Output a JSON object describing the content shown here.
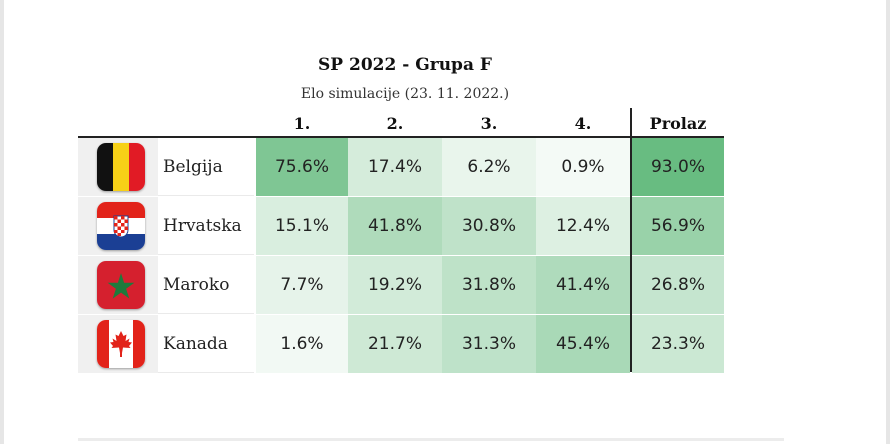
{
  "chart_data": {
    "type": "table",
    "title": "SP 2022 - Grupa F",
    "subtitle": "Elo simulacije (23. 11. 2022.)",
    "columns": [
      "1.",
      "2.",
      "3.",
      "4.",
      "Prolaz"
    ],
    "rows": [
      {
        "team": "Belgija",
        "flag": "belgium-flag",
        "values": [
          "75.6%",
          "17.4%",
          "6.2%",
          "0.9%",
          "93.0%"
        ],
        "numbers": [
          75.6,
          17.4,
          6.2,
          0.9,
          93.0
        ]
      },
      {
        "team": "Hrvatska",
        "flag": "croatia-flag",
        "values": [
          "15.1%",
          "41.8%",
          "30.8%",
          "12.4%",
          "56.9%"
        ],
        "numbers": [
          15.1,
          41.8,
          30.8,
          12.4,
          56.9
        ]
      },
      {
        "team": "Maroko",
        "flag": "morocco-flag",
        "values": [
          "7.7%",
          "19.2%",
          "31.8%",
          "41.4%",
          "26.8%"
        ],
        "numbers": [
          7.7,
          19.2,
          31.8,
          41.4,
          26.8
        ]
      },
      {
        "team": "Kanada",
        "flag": "canada-flag",
        "values": [
          "1.6%",
          "21.7%",
          "31.3%",
          "45.4%",
          "23.3%"
        ],
        "numbers": [
          1.6,
          21.7,
          31.3,
          45.4,
          23.3
        ]
      }
    ],
    "color_scale": {
      "low": "#f7fbf8",
      "high": "#5fb879"
    }
  }
}
